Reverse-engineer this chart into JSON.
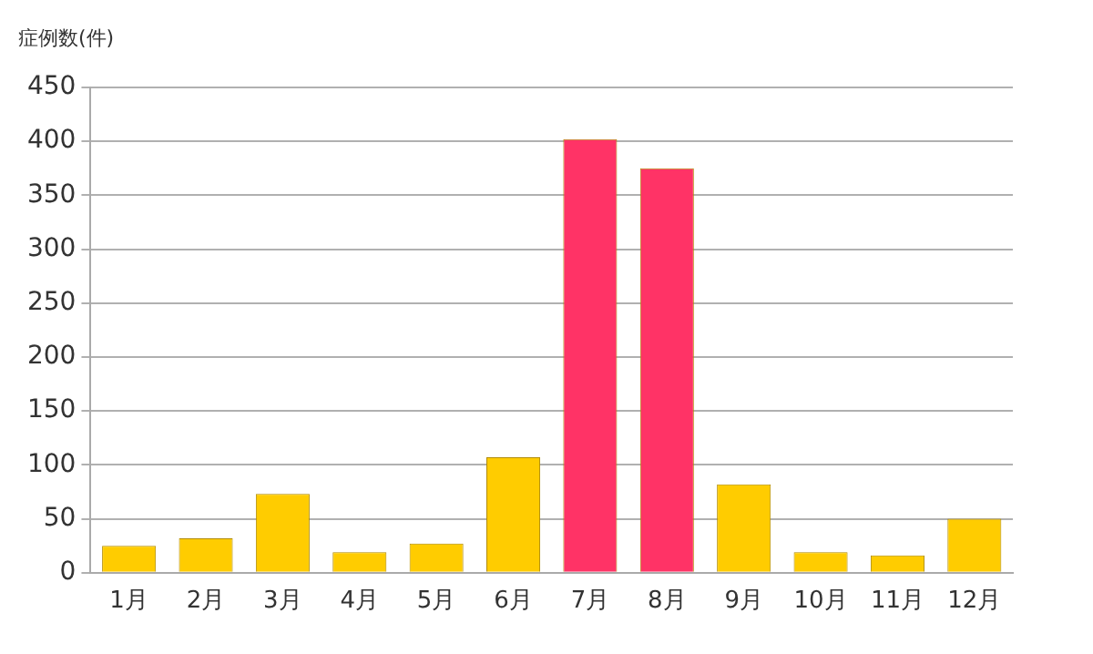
{
  "chart_data": {
    "type": "bar",
    "ylabel": "症例数(件)",
    "categories": [
      "1月",
      "2月",
      "3月",
      "4月",
      "5月",
      "6月",
      "7月",
      "8月",
      "9月",
      "10月",
      "11月",
      "12月"
    ],
    "values": [
      25,
      32,
      73,
      19,
      27,
      107,
      402,
      375,
      82,
      19,
      16,
      50
    ],
    "colors": [
      "#ffcc00",
      "#ffcc00",
      "#ffcc00",
      "#ffcc00",
      "#ffcc00",
      "#ffcc00",
      "#ff3366",
      "#ff3366",
      "#ffcc00",
      "#ffcc00",
      "#ffcc00",
      "#ffcc00"
    ],
    "ylim": [
      0,
      450
    ],
    "yticks": [
      0,
      50,
      100,
      150,
      200,
      250,
      300,
      350,
      400,
      450
    ],
    "grid": "y",
    "legend": false
  }
}
